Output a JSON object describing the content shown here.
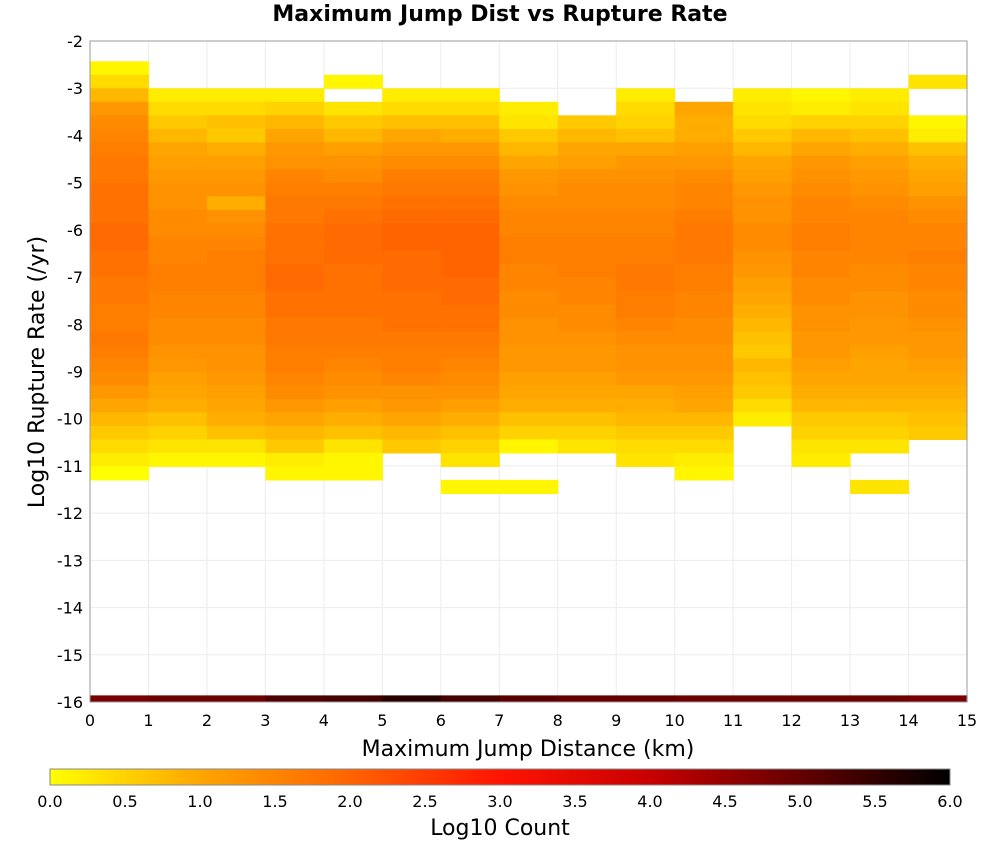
{
  "chart_data": {
    "type": "heatmap",
    "title": "Maximum Jump Dist vs Rupture Rate",
    "xlabel": "Maximum Jump Distance (km)",
    "ylabel": "Log10 Rupture Rate (/yr)",
    "xlim": [
      0,
      15
    ],
    "ylim": [
      -16,
      -2
    ],
    "x_ticks": [
      "0",
      "1",
      "2",
      "3",
      "4",
      "5",
      "6",
      "7",
      "8",
      "9",
      "10",
      "11",
      "12",
      "13",
      "14",
      "15"
    ],
    "y_ticks": [
      "-2",
      "-3",
      "-4",
      "-5",
      "-6",
      "-7",
      "-8",
      "-9",
      "-10",
      "-11",
      "-12",
      "-13",
      "-14",
      "-15",
      "-16"
    ],
    "grid": true,
    "x_bin_width_km": 1,
    "y_bin_width_log10": 0.286,
    "y_bin_ceiling_log10": -2.43,
    "column_values_note": "values listed per column from top bin downward (log10 count)",
    "columns": [
      {
        "x": 0.5,
        "values": [
          0.1,
          0.4,
          0.8,
          1.2,
          1.4,
          1.5,
          1.6,
          1.7,
          1.7,
          1.8,
          1.8,
          1.8,
          1.9,
          1.9,
          1.8,
          1.8,
          1.7,
          1.7,
          1.6,
          1.6,
          1.7,
          1.6,
          1.5,
          1.4,
          1.2,
          1.0,
          0.8,
          0.6,
          0.4,
          0.2,
          0.0
        ]
      },
      {
        "x": 1.5,
        "values": [
          null,
          null,
          0.2,
          0.4,
          0.6,
          0.8,
          1.0,
          1.1,
          1.2,
          1.3,
          1.3,
          1.4,
          1.4,
          1.5,
          1.5,
          1.6,
          1.6,
          1.5,
          1.5,
          1.4,
          1.4,
          1.3,
          1.2,
          1.1,
          1.0,
          0.9,
          0.7,
          0.5,
          0.3,
          0.1
        ]
      },
      {
        "x": 2.5,
        "values": [
          null,
          null,
          0.2,
          0.4,
          0.7,
          0.6,
          0.9,
          1.1,
          1.2,
          1.3,
          0.9,
          1.3,
          1.4,
          1.5,
          1.6,
          1.6,
          1.6,
          1.5,
          1.5,
          1.4,
          1.4,
          1.3,
          1.3,
          1.2,
          1.1,
          1.0,
          0.9,
          0.7,
          0.3,
          0.1
        ]
      },
      {
        "x": 3.5,
        "values": [
          null,
          null,
          0.2,
          0.5,
          0.8,
          1.0,
          1.2,
          1.3,
          1.5,
          1.6,
          1.7,
          1.7,
          1.8,
          1.8,
          1.8,
          1.9,
          1.9,
          1.8,
          1.8,
          1.7,
          1.7,
          1.6,
          1.6,
          1.5,
          1.4,
          1.2,
          1.0,
          0.8,
          0.6,
          0.2,
          0.1
        ]
      },
      {
        "x": 4.5,
        "values": [
          null,
          0.1,
          null,
          0.3,
          0.6,
          0.8,
          1.1,
          1.3,
          1.4,
          1.6,
          1.7,
          1.8,
          1.9,
          1.9,
          1.9,
          1.8,
          1.8,
          1.8,
          1.8,
          1.7,
          1.7,
          1.6,
          1.5,
          1.4,
          1.3,
          1.1,
          0.9,
          0.7,
          0.3,
          0.1,
          0.1
        ]
      },
      {
        "x": 5.5,
        "values": [
          null,
          null,
          0.2,
          0.4,
          0.7,
          1.0,
          1.2,
          1.4,
          1.6,
          1.7,
          1.8,
          1.9,
          2.0,
          2.0,
          1.9,
          1.9,
          1.9,
          1.8,
          1.8,
          1.8,
          1.7,
          1.6,
          1.6,
          1.5,
          1.3,
          1.2,
          1.0,
          0.8,
          0.6
        ]
      },
      {
        "x": 6.5,
        "values": [
          null,
          null,
          0.2,
          0.4,
          0.7,
          0.9,
          1.2,
          1.4,
          1.6,
          1.7,
          1.8,
          1.9,
          2.0,
          2.0,
          2.0,
          2.0,
          1.9,
          1.9,
          1.8,
          1.8,
          1.7,
          1.6,
          1.5,
          1.4,
          1.3,
          1.1,
          0.9,
          0.7,
          0.5,
          0.3,
          null,
          0.1
        ]
      },
      {
        "x": 7.5,
        "values": [
          null,
          null,
          null,
          0.2,
          0.3,
          0.6,
          0.8,
          1.0,
          1.2,
          1.3,
          1.4,
          1.5,
          1.5,
          1.6,
          1.6,
          1.5,
          1.5,
          1.4,
          1.4,
          1.3,
          1.3,
          1.2,
          1.2,
          1.1,
          1.0,
          0.9,
          0.7,
          0.5,
          0.1,
          null,
          null,
          0.1
        ]
      },
      {
        "x": 8.5,
        "values": [
          null,
          null,
          null,
          null,
          0.6,
          0.8,
          1.0,
          1.1,
          1.3,
          1.4,
          1.4,
          1.5,
          1.5,
          1.6,
          1.6,
          1.6,
          1.5,
          1.5,
          1.4,
          1.4,
          1.3,
          1.2,
          1.2,
          1.1,
          1.0,
          0.9,
          0.7,
          0.5,
          0.3
        ]
      },
      {
        "x": 9.5,
        "values": [
          null,
          null,
          0.2,
          0.4,
          0.5,
          0.7,
          1.0,
          1.2,
          1.3,
          1.4,
          1.4,
          1.5,
          1.5,
          1.6,
          1.6,
          1.7,
          1.7,
          1.6,
          1.6,
          1.5,
          1.4,
          1.3,
          1.3,
          1.2,
          1.0,
          0.9,
          0.8,
          0.6,
          0.4,
          0.3
        ]
      },
      {
        "x": 10.5,
        "values": [
          null,
          null,
          null,
          1.0,
          0.9,
          0.9,
          1.1,
          1.2,
          1.4,
          1.5,
          1.5,
          1.6,
          1.7,
          1.7,
          1.7,
          1.6,
          1.6,
          1.5,
          1.5,
          1.4,
          1.4,
          1.3,
          1.3,
          1.2,
          1.1,
          1.0,
          0.8,
          0.6,
          0.4,
          0.2,
          0.1
        ]
      },
      {
        "x": 11.5,
        "values": [
          null,
          null,
          0.2,
          0.3,
          0.4,
          0.6,
          0.8,
          1.0,
          1.1,
          1.2,
          1.3,
          1.3,
          1.4,
          1.4,
          1.3,
          1.2,
          1.1,
          1.0,
          0.9,
          0.8,
          0.7,
          0.6,
          0.8,
          0.7,
          0.6,
          0.4,
          0.2
        ]
      },
      {
        "x": 12.5,
        "values": [
          null,
          null,
          0.1,
          0.2,
          0.5,
          0.8,
          1.0,
          1.2,
          1.3,
          1.4,
          1.5,
          1.5,
          1.6,
          1.6,
          1.5,
          1.5,
          1.4,
          1.4,
          1.3,
          1.3,
          1.2,
          1.2,
          1.1,
          1.0,
          0.9,
          0.8,
          0.6,
          0.5,
          0.3,
          0.2
        ]
      },
      {
        "x": 13.5,
        "values": [
          null,
          null,
          0.2,
          0.3,
          0.5,
          0.7,
          0.9,
          1.1,
          1.2,
          1.3,
          1.4,
          1.5,
          1.5,
          1.5,
          1.5,
          1.4,
          1.4,
          1.3,
          1.3,
          1.2,
          1.2,
          1.1,
          1.0,
          1.0,
          0.9,
          0.8,
          0.6,
          0.5,
          0.3,
          null,
          null,
          0.3
        ]
      },
      {
        "x": 14.5,
        "values": [
          null,
          0.3,
          null,
          null,
          0.1,
          0.2,
          0.7,
          0.9,
          1.0,
          1.1,
          1.3,
          1.4,
          1.5,
          1.5,
          1.6,
          1.5,
          1.5,
          1.4,
          1.4,
          1.3,
          1.2,
          1.2,
          1.1,
          1.0,
          0.9,
          0.8,
          0.7,
          0.6
        ]
      }
    ],
    "floor_row": {
      "y_range": [
        -16,
        -15.86
      ],
      "values": [
        4.8,
        4.9,
        4.9,
        5.2,
        5.3,
        5.6,
        5.3,
        5.1,
        5.0,
        5.0,
        4.9,
        4.9,
        4.9,
        4.9,
        4.8
      ]
    },
    "colorbar": {
      "label": "Log10 Count",
      "min": 0.0,
      "max": 6.0,
      "ticks": [
        "0.0",
        "0.5",
        "1.0",
        "1.5",
        "2.0",
        "2.5",
        "3.0",
        "3.5",
        "4.0",
        "4.5",
        "5.0",
        "5.5",
        "6.0"
      ],
      "colors": [
        "#ffff00",
        "#ffa500",
        "#ff6400",
        "#ff1400",
        "#c80000",
        "#640000",
        "#000000"
      ]
    }
  }
}
